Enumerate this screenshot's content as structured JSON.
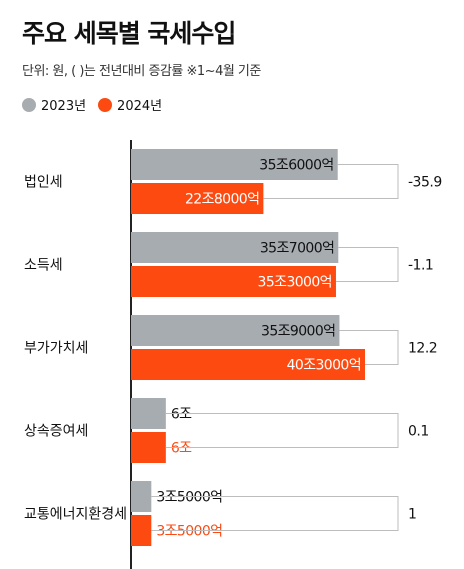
{
  "header": {
    "title": "주요 세목별 국세수입",
    "subtitle": "단위: 원, ( )는 전년대비 증감률   ※1~4월 기준"
  },
  "chart_data": {
    "type": "bar",
    "orientation": "horizontal",
    "unit": "원",
    "categories": [
      "법인세",
      "소득세",
      "부가가치세",
      "상속증여세",
      "교통에너지환경세"
    ],
    "series": [
      {
        "name": "2023년",
        "color": "#a7acb1",
        "values": [
          35.6,
          35.7,
          35.9,
          6,
          3.5
        ],
        "labels": [
          "35조6000억",
          "35조7000억",
          "35조9000억",
          "6조",
          "3조5000억"
        ]
      },
      {
        "name": "2024년",
        "color": "#fd4a11",
        "values": [
          22.8,
          35.3,
          40.3,
          6,
          3.5
        ],
        "labels": [
          "22조8000억",
          "35조3000억",
          "40조3000억",
          "6조",
          "3조5000억"
        ]
      }
    ],
    "change_pct": [
      "-35.9",
      "-1.1",
      "12.2",
      "0.1",
      "1"
    ],
    "value_units": "조원",
    "xlim": [
      0,
      40.3
    ],
    "grid": false,
    "legend_position": "top-left"
  }
}
